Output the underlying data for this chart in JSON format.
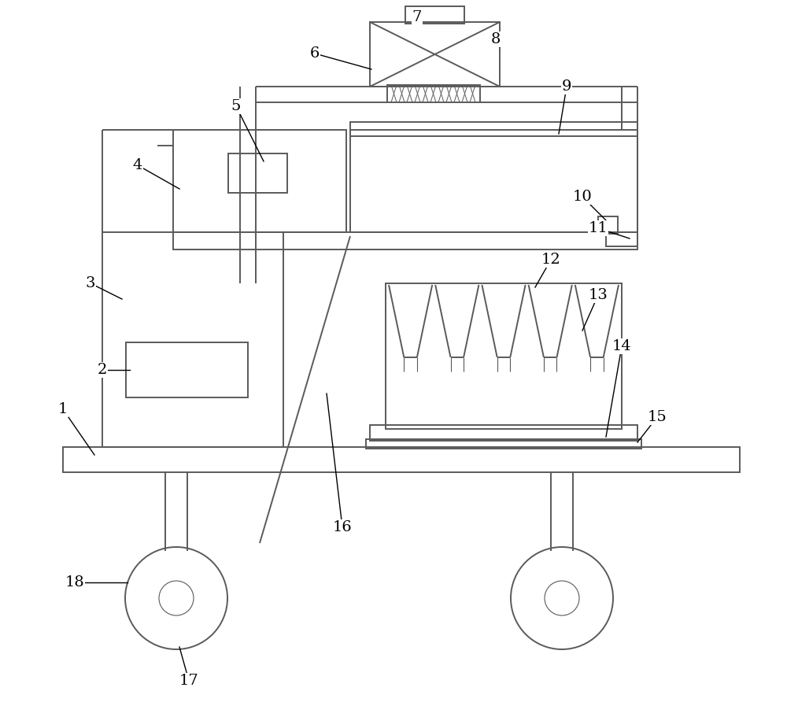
{
  "bg_color": "#ffffff",
  "line_color": "#5a5a5a",
  "line_width": 1.4,
  "thin_line": 0.8,
  "label_fontsize": 14
}
